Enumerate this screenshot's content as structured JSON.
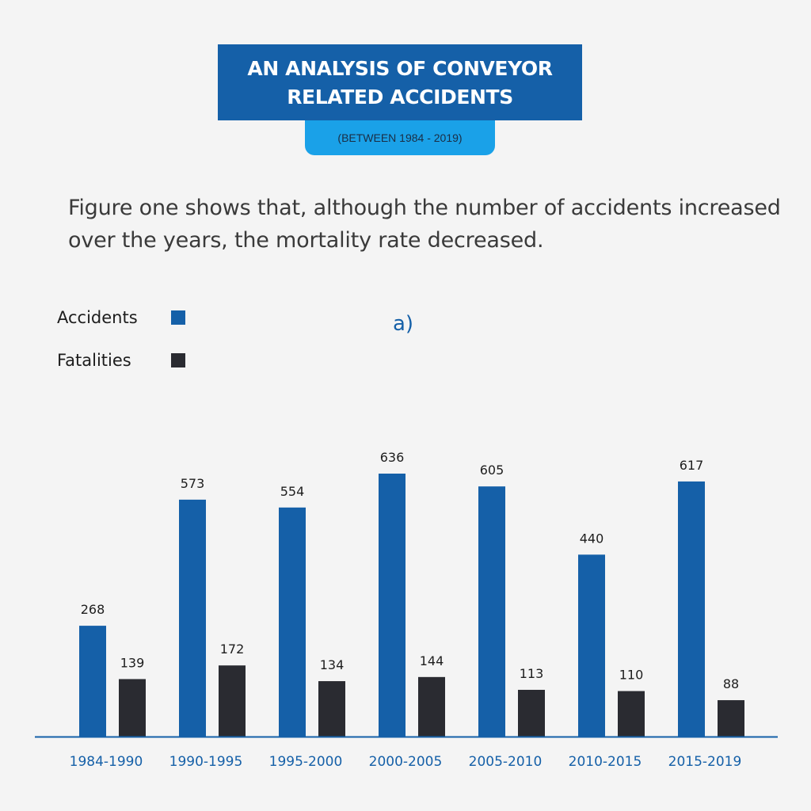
{
  "header": {
    "title_line1": "AN ANALYSIS OF CONVEYOR",
    "title_line2": "RELATED ACCIDENTS",
    "subtitle": "(BETWEEN 1984 - 2019)"
  },
  "description": "Figure one shows that, although the number of accidents increased over the years, the mortality rate decreased.",
  "chart_label": "a)",
  "legend": [
    {
      "label": "Accidents",
      "color": "#1560a8"
    },
    {
      "label": "Fatalities",
      "color": "#2a2b31"
    }
  ],
  "colors": {
    "accent": "#1560a8",
    "dark": "#2a2b31",
    "subtitle_bg": "#1aa1e8"
  },
  "chart_data": {
    "type": "bar",
    "categories": [
      "1984-1990",
      "1990-1995",
      "1995-2000",
      "2000-2005",
      "2005-2010",
      "2010-2015",
      "2015-2019"
    ],
    "series": [
      {
        "name": "Accidents",
        "values": [
          268,
          573,
          554,
          636,
          605,
          440,
          617
        ]
      },
      {
        "name": "Fatalities",
        "values": [
          139,
          172,
          134,
          144,
          113,
          110,
          88
        ]
      }
    ],
    "title": "a)",
    "xlabel": "",
    "ylabel": "",
    "ylim": [
      0,
      636
    ],
    "grid": false,
    "legend_position": "top-left"
  }
}
